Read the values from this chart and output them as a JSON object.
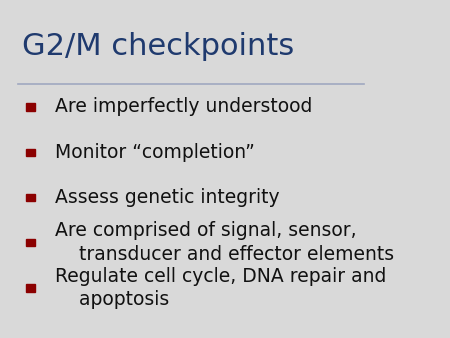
{
  "title": "G2/M checkpoints",
  "title_color": "#1F3A6E",
  "title_fontsize": 22,
  "background_color": "#D9D9D9",
  "separator_color": "#A0A8C0",
  "bullet_color": "#8B0000",
  "text_color": "#111111",
  "bullet_fontsize": 13.5,
  "bullets": [
    "Are imperfectly understood",
    "Monitor “completion”",
    "Assess genetic integrity",
    "Are comprised of signal, sensor,\n    transducer and effector elements",
    "Regulate cell cycle, DNA repair and\n    apoptosis"
  ]
}
